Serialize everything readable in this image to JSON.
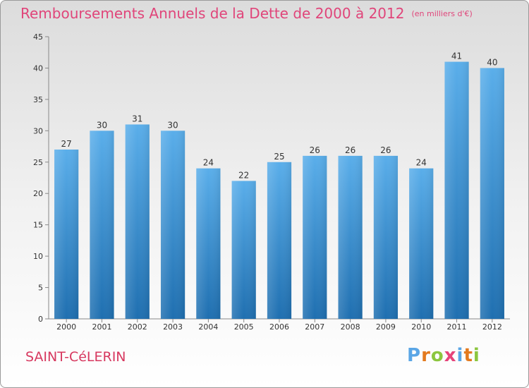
{
  "chart_data": {
    "type": "bar",
    "title": "Remboursements Annuels de la Dette de 2000 à 2012",
    "unit_note": "(en milliers d'€)",
    "categories": [
      "2000",
      "2001",
      "2002",
      "2003",
      "2004",
      "2005",
      "2006",
      "2007",
      "2008",
      "2009",
      "2010",
      "2011",
      "2012"
    ],
    "values": [
      27,
      30,
      31,
      30,
      24,
      22,
      25,
      26,
      26,
      26,
      24,
      41,
      40
    ],
    "ylim": [
      0,
      45
    ],
    "yticks": [
      0,
      5,
      10,
      15,
      20,
      25,
      30,
      35,
      40,
      45
    ],
    "xlabel": "",
    "ylabel": "",
    "bar_color_top": "#5aaeea",
    "bar_color_bottom": "#1f6fb0",
    "grid": false
  },
  "footer": {
    "commune": "SAINT-CéLERIN",
    "logo_text": "Proxiti",
    "logo_colors": [
      "#5aa6e6",
      "#e37a1e",
      "#8cc63f",
      "#e6447a",
      "#5aa6e6",
      "#e37a1e",
      "#8cc63f"
    ]
  }
}
